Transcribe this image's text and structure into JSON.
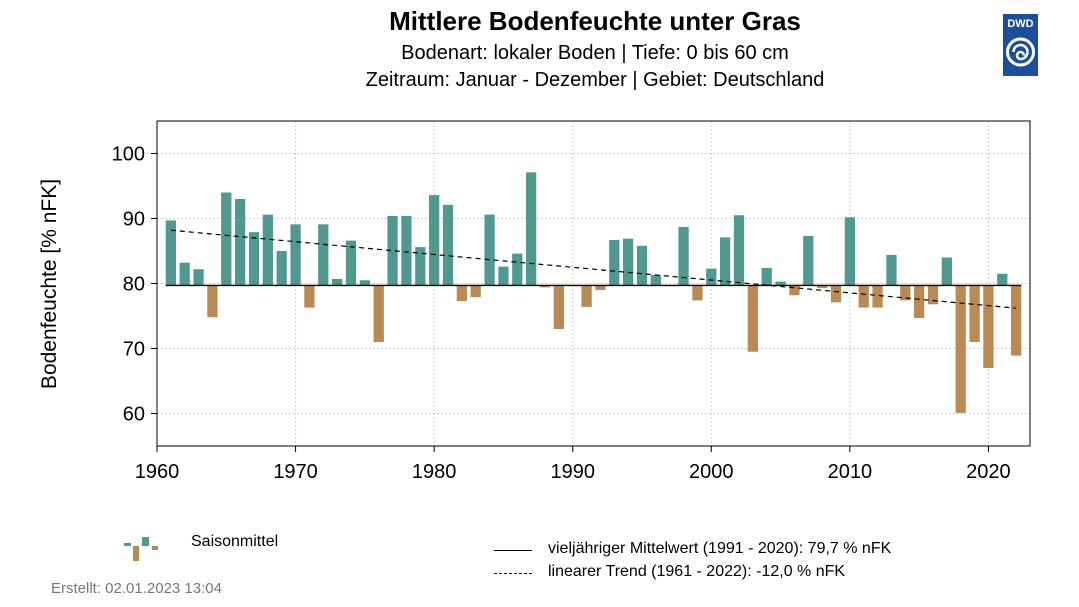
{
  "header": {
    "title": "Mittlere Bodenfeuchte unter Gras",
    "subtitle_1": "Bodenart: lokaler Boden | Tiefe: 0 bis 60 cm",
    "subtitle_2": "Zeitraum: Januar - Dezember | Gebiet: Deutschland",
    "logo_text": "DWD"
  },
  "legend": {
    "season": "Saisonmittel",
    "mean": "vieljähriger Mittelwert (1991 - 2020): 79,7 % nFK",
    "trend": "linearer Trend (1961 - 2022): -12,0 % nFK"
  },
  "footer": {
    "created": "Erstellt:  02.01.2023 13:04"
  },
  "colors": {
    "above": "#4f9990",
    "below": "#b98a52",
    "brand": "#1b4f9c"
  },
  "chart_data": {
    "type": "bar",
    "ylabel": "Bodenfeuchte [% nFK]",
    "xlim": [
      1960,
      2023
    ],
    "ylim": [
      55,
      105
    ],
    "x_ticks": [
      1960,
      1970,
      1980,
      1990,
      2000,
      2010,
      2020
    ],
    "y_ticks": [
      60,
      70,
      80,
      90,
      100
    ],
    "grid": true,
    "baseline": 79.7,
    "trend": {
      "x": [
        1961,
        2022
      ],
      "y": [
        88.2,
        76.2
      ]
    },
    "x": [
      1961,
      1962,
      1963,
      1964,
      1965,
      1966,
      1967,
      1968,
      1969,
      1970,
      1971,
      1972,
      1973,
      1974,
      1975,
      1976,
      1977,
      1978,
      1979,
      1980,
      1981,
      1982,
      1983,
      1984,
      1985,
      1986,
      1987,
      1988,
      1989,
      1990,
      1991,
      1992,
      1993,
      1994,
      1995,
      1996,
      1997,
      1998,
      1999,
      2000,
      2001,
      2002,
      2003,
      2004,
      2005,
      2006,
      2007,
      2008,
      2009,
      2010,
      2011,
      2012,
      2013,
      2014,
      2015,
      2016,
      2017,
      2018,
      2019,
      2020,
      2021,
      2022
    ],
    "values": [
      89.7,
      83.2,
      82.2,
      74.8,
      94.0,
      93.0,
      87.9,
      90.6,
      85.0,
      89.1,
      76.3,
      89.1,
      80.7,
      86.6,
      80.5,
      71.0,
      90.4,
      90.4,
      85.6,
      93.6,
      92.1,
      77.3,
      77.9,
      90.6,
      82.6,
      84.6,
      97.1,
      79.4,
      73.0,
      79.6,
      76.4,
      79.0,
      86.7,
      86.9,
      85.8,
      81.3,
      79.6,
      88.7,
      77.4,
      82.3,
      87.1,
      90.5,
      69.5,
      82.4,
      80.3,
      78.2,
      87.3,
      79.3,
      77.1,
      90.2,
      76.3,
      76.3,
      84.4,
      77.4,
      74.7,
      76.8,
      84.0,
      60.1,
      71.0,
      67.0,
      81.5,
      68.9
    ]
  }
}
